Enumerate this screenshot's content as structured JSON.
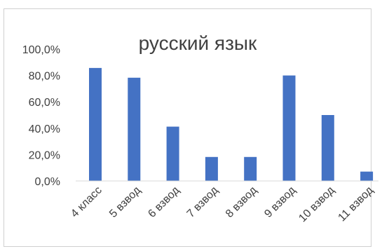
{
  "chart_data": {
    "type": "bar",
    "title": "русский язык",
    "categories": [
      "4 класс",
      "5 взвод",
      "6 взвод",
      "7 взвод",
      "8 взвод",
      "9 взвод",
      "10 взвод",
      "11 взвод"
    ],
    "values": [
      85.7,
      78.3,
      41.2,
      18.2,
      18.2,
      80.0,
      50.0,
      7.1
    ],
    "ylim": [
      0,
      100
    ],
    "yticks": [
      "0,0%",
      "20,0%",
      "40,0%",
      "60,0%",
      "80,0%",
      "100,0%"
    ],
    "xlabel": "",
    "ylabel": "",
    "bar_color": "#4472c4",
    "grid": false,
    "legend": "none"
  }
}
